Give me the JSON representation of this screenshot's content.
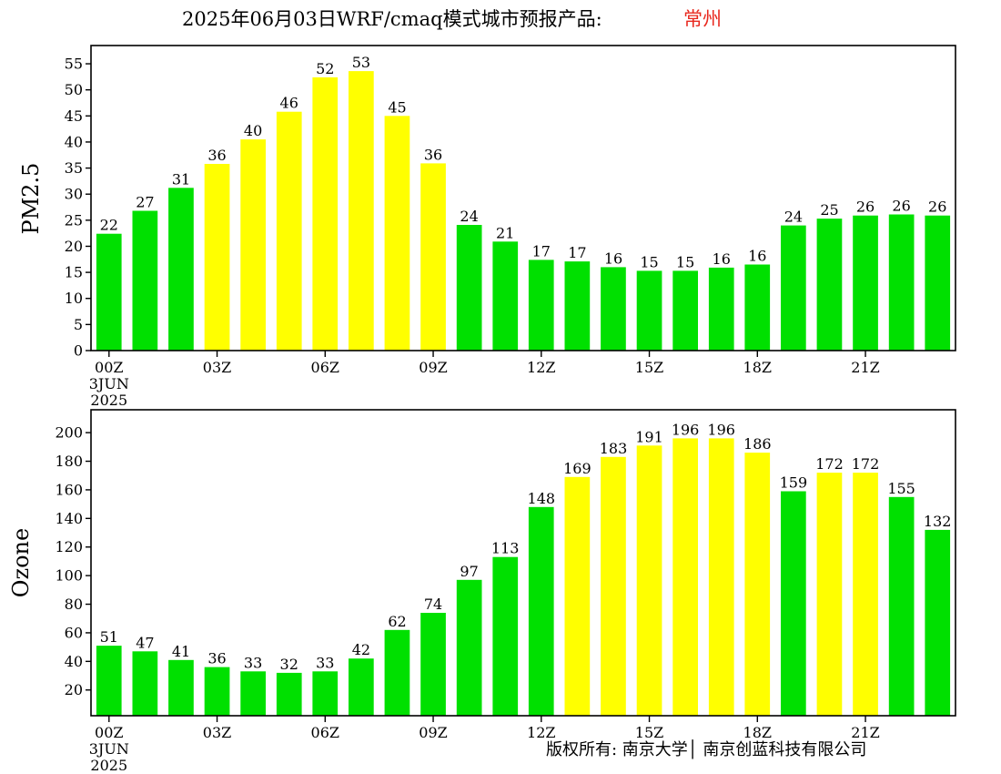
{
  "header": {
    "title": "2025年06月03日WRF/cmaq模式城市预报产品:",
    "city": "常州"
  },
  "footer": {
    "copyright": "版权所有: 南京大学│ 南京创蓝科技有限公司"
  },
  "colors": {
    "good": "#00e000",
    "moderate": "#ffff00",
    "city_title": "#e8281e"
  },
  "chart_data": [
    {
      "type": "bar",
      "ylabel": "PM2.5",
      "ylim": [
        0,
        58.5
      ],
      "yticks": [
        0,
        5,
        10,
        15,
        20,
        25,
        30,
        35,
        40,
        45,
        50,
        55
      ],
      "x": [
        0,
        1,
        2,
        3,
        4,
        5,
        6,
        7,
        8,
        9,
        10,
        11,
        12,
        13,
        14,
        15,
        16,
        17,
        18,
        19,
        20,
        21,
        22,
        23
      ],
      "values": [
        22,
        27,
        31,
        36,
        40,
        46,
        52,
        53,
        45,
        36,
        24,
        21,
        17,
        17,
        16,
        15,
        15,
        16,
        16,
        24,
        25,
        26,
        26,
        26
      ],
      "bar_heights": [
        22.4,
        26.8,
        31.2,
        35.8,
        40.5,
        45.8,
        52.4,
        53.6,
        45.0,
        35.9,
        24.1,
        20.9,
        17.4,
        17.1,
        16.0,
        15.3,
        15.3,
        15.9,
        16.5,
        24.0,
        25.3,
        25.9,
        26.1,
        25.9
      ],
      "levels": [
        "good",
        "good",
        "good",
        "moderate",
        "moderate",
        "moderate",
        "moderate",
        "moderate",
        "moderate",
        "moderate",
        "good",
        "good",
        "good",
        "good",
        "good",
        "good",
        "good",
        "good",
        "good",
        "good",
        "good",
        "good",
        "good",
        "good"
      ],
      "xticks": [
        {
          "x": 0,
          "label": "00Z"
        },
        {
          "x": 3,
          "label": "03Z"
        },
        {
          "x": 6,
          "label": "06Z"
        },
        {
          "x": 9,
          "label": "09Z"
        },
        {
          "x": 12,
          "label": "12Z"
        },
        {
          "x": 15,
          "label": "15Z"
        },
        {
          "x": 18,
          "label": "18Z"
        },
        {
          "x": 21,
          "label": "21Z"
        }
      ],
      "date_label": [
        "3JUN",
        "2025"
      ]
    },
    {
      "type": "bar",
      "ylabel": "Ozone",
      "ylim": [
        2,
        216
      ],
      "yticks": [
        20,
        40,
        60,
        80,
        100,
        120,
        140,
        160,
        180,
        200
      ],
      "x": [
        0,
        1,
        2,
        3,
        4,
        5,
        6,
        7,
        8,
        9,
        10,
        11,
        12,
        13,
        14,
        15,
        16,
        17,
        18,
        19,
        20,
        21,
        22,
        23
      ],
      "values": [
        51,
        47,
        41,
        36,
        33,
        32,
        33,
        42,
        62,
        74,
        97,
        113,
        148,
        169,
        183,
        191,
        196,
        196,
        186,
        159,
        172,
        172,
        155,
        132
      ],
      "levels": [
        "good",
        "good",
        "good",
        "good",
        "good",
        "good",
        "good",
        "good",
        "good",
        "good",
        "good",
        "good",
        "good",
        "moderate",
        "moderate",
        "moderate",
        "moderate",
        "moderate",
        "moderate",
        "good",
        "moderate",
        "moderate",
        "good",
        "good"
      ],
      "xticks": [
        {
          "x": 0,
          "label": "00Z"
        },
        {
          "x": 3,
          "label": "03Z"
        },
        {
          "x": 6,
          "label": "06Z"
        },
        {
          "x": 9,
          "label": "09Z"
        },
        {
          "x": 12,
          "label": "12Z"
        },
        {
          "x": 15,
          "label": "15Z"
        },
        {
          "x": 18,
          "label": "18Z"
        },
        {
          "x": 21,
          "label": "21Z"
        }
      ],
      "date_label": [
        "3JUN",
        "2025"
      ]
    }
  ]
}
